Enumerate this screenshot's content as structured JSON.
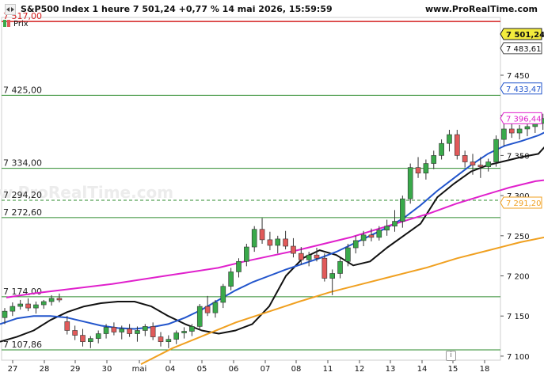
{
  "header": {
    "title": "S&P500 Index 1 heure 7 501,24 +0,77 % 14 mai 2026, 15:59:59",
    "website": "www.ProRealTime.com",
    "legend_label": "Prix"
  },
  "watermark": "www.ProRealTime.com",
  "info_button_glyph": "i",
  "chart_data": {
    "type": "candlestick",
    "instrument": "S&P500 Index",
    "timeframe": "1 heure",
    "last_price": "7 501,24",
    "change": "+0,77 %",
    "date": "14 mai 2026, 15:59:59",
    "x_tick_labels": [
      "27",
      "28",
      "29",
      "30",
      "mai",
      "04",
      "05",
      "06",
      "07",
      "08",
      "11",
      "12",
      "13",
      "14",
      "15",
      "18"
    ],
    "y_range": [
      7095,
      7522
    ],
    "y_ticks": [
      7100,
      7150,
      7200,
      7250,
      7300,
      7350,
      7400,
      7450
    ],
    "y_tick_labels": [
      "7 100",
      "7 150",
      "7 200",
      "7 250",
      "7 300",
      "7 350",
      "7 400",
      "7 450"
    ],
    "candles": [
      [
        7148,
        7160,
        7140,
        7156
      ],
      [
        7156,
        7167,
        7150,
        7162
      ],
      [
        7162,
        7170,
        7158,
        7165
      ],
      [
        7165,
        7172,
        7156,
        7160
      ],
      [
        7160,
        7168,
        7153,
        7164
      ],
      [
        7164,
        7170,
        7159,
        7168
      ],
      [
        7168,
        7176,
        7163,
        7172
      ],
      [
        7172,
        7178,
        7167,
        7170
      ],
      [
        7143,
        7150,
        7127,
        7132
      ],
      [
        7132,
        7138,
        7120,
        7126
      ],
      [
        7126,
        7134,
        7112,
        7118
      ],
      [
        7118,
        7125,
        7110,
        7122
      ],
      [
        7122,
        7132,
        7116,
        7128
      ],
      [
        7128,
        7140,
        7122,
        7136
      ],
      [
        7136,
        7142,
        7126,
        7130
      ],
      [
        7130,
        7138,
        7121,
        7134
      ],
      [
        7134,
        7140,
        7124,
        7128
      ],
      [
        7128,
        7137,
        7118,
        7132
      ],
      [
        7132,
        7140,
        7125,
        7137
      ],
      [
        7137,
        7142,
        7120,
        7124
      ],
      [
        7124,
        7130,
        7112,
        7118
      ],
      [
        7118,
        7126,
        7110,
        7121
      ],
      [
        7121,
        7132,
        7115,
        7129
      ],
      [
        7129,
        7136,
        7122,
        7131
      ],
      [
        7131,
        7140,
        7125,
        7137
      ],
      [
        7137,
        7165,
        7132,
        7162
      ],
      [
        7162,
        7175,
        7150,
        7154
      ],
      [
        7154,
        7170,
        7148,
        7167
      ],
      [
        7167,
        7190,
        7160,
        7187
      ],
      [
        7187,
        7210,
        7182,
        7205
      ],
      [
        7205,
        7222,
        7198,
        7218
      ],
      [
        7218,
        7240,
        7212,
        7236
      ],
      [
        7236,
        7262,
        7230,
        7258
      ],
      [
        7258,
        7272,
        7240,
        7245
      ],
      [
        7245,
        7255,
        7232,
        7238
      ],
      [
        7238,
        7250,
        7228,
        7246
      ],
      [
        7246,
        7256,
        7233,
        7237
      ],
      [
        7237,
        7247,
        7223,
        7228
      ],
      [
        7228,
        7236,
        7214,
        7220
      ],
      [
        7220,
        7230,
        7212,
        7226
      ],
      [
        7226,
        7235,
        7218,
        7222
      ],
      [
        7222,
        7228,
        7193,
        7197
      ],
      [
        7197,
        7208,
        7176,
        7203
      ],
      [
        7203,
        7222,
        7197,
        7218
      ],
      [
        7218,
        7240,
        7212,
        7235
      ],
      [
        7235,
        7250,
        7228,
        7244
      ],
      [
        7244,
        7256,
        7237,
        7251
      ],
      [
        7251,
        7259,
        7243,
        7248
      ],
      [
        7248,
        7262,
        7244,
        7257
      ],
      [
        7257,
        7270,
        7250,
        7262
      ],
      [
        7262,
        7282,
        7255,
        7268
      ],
      [
        7268,
        7300,
        7260,
        7296
      ],
      [
        7296,
        7340,
        7290,
        7335
      ],
      [
        7335,
        7348,
        7322,
        7328
      ],
      [
        7328,
        7345,
        7320,
        7340
      ],
      [
        7340,
        7356,
        7333,
        7350
      ],
      [
        7350,
        7370,
        7345,
        7365
      ],
      [
        7365,
        7382,
        7355,
        7376
      ],
      [
        7376,
        7382,
        7345,
        7350
      ],
      [
        7350,
        7356,
        7335,
        7342
      ],
      [
        7342,
        7352,
        7326,
        7338
      ],
      [
        7338,
        7348,
        7322,
        7336
      ],
      [
        7336,
        7346,
        7330,
        7342
      ],
      [
        7342,
        7375,
        7336,
        7370
      ],
      [
        7370,
        7390,
        7362,
        7383
      ],
      [
        7383,
        7392,
        7372,
        7378
      ],
      [
        7378,
        7388,
        7370,
        7383
      ],
      [
        7383,
        7392,
        7374,
        7386
      ],
      [
        7386,
        7396,
        7378,
        7390
      ],
      [
        7390,
        7402,
        7382,
        7396
      ],
      [
        7396,
        7412,
        7388,
        7406
      ],
      [
        7406,
        7420,
        7398,
        7414
      ],
      [
        7414,
        7425,
        7402,
        7421
      ],
      [
        7421,
        7432,
        7410,
        7427
      ],
      [
        7427,
        7433,
        7418,
        7424
      ],
      [
        7424,
        7430,
        7412,
        7420
      ],
      [
        7420,
        7427,
        7405,
        7410
      ],
      [
        7410,
        7416,
        7384,
        7387
      ],
      [
        7387,
        7395,
        7360,
        7366
      ],
      [
        7366,
        7374,
        7338,
        7344
      ],
      [
        7344,
        7355,
        7336,
        7348
      ],
      [
        7348,
        7380,
        7340,
        7376
      ],
      [
        7376,
        7386,
        7366,
        7380
      ],
      [
        7380,
        7394,
        7372,
        7389
      ],
      [
        7389,
        7402,
        7382,
        7397
      ],
      [
        7397,
        7412,
        7390,
        7405
      ],
      [
        7405,
        7422,
        7398,
        7415
      ],
      [
        7415,
        7438,
        7410,
        7433
      ],
      [
        7433,
        7446,
        7425,
        7441
      ],
      [
        7441,
        7445,
        7432,
        7436
      ],
      [
        7436,
        7452,
        7430,
        7446
      ],
      [
        7446,
        7460,
        7440,
        7455
      ],
      [
        7455,
        7478,
        7448,
        7472
      ],
      [
        7472,
        7488,
        7466,
        7483
      ],
      [
        7483,
        7502,
        7478,
        7497
      ],
      [
        7497,
        7517,
        7490,
        7512
      ],
      [
        7512,
        7516,
        7494,
        7500
      ],
      [
        7500,
        7506,
        7488,
        7496
      ],
      [
        7496,
        7506,
        7492,
        7502
      ],
      [
        7502,
        7506,
        7495,
        7501
      ]
    ],
    "moving_averages": [
      {
        "color": "#111111",
        "values": [
          7118,
          7124,
          7132,
          7145,
          7155,
          7162,
          7166,
          7168,
          7168,
          7162,
          7150,
          7140,
          7132,
          7128,
          7132,
          7140,
          7162,
          7200,
          7222,
          7232,
          7226,
          7213,
          7218,
          7235,
          7250,
          7265,
          7298,
          7315,
          7330,
          7338,
          7343,
          7348,
          7352,
          7375,
          7392,
          7404,
          7412,
          7420,
          7410,
          7380,
          7360,
          7365,
          7390,
          7420,
          7450,
          7475,
          7484
        ]
      },
      {
        "color": "#2255cc",
        "values": [
          7140,
          7147,
          7150,
          7150,
          7148,
          7143,
          7138,
          7135,
          7134,
          7136,
          7140,
          7148,
          7158,
          7170,
          7182,
          7192,
          7200,
          7208,
          7215,
          7222,
          7230,
          7240,
          7250,
          7260,
          7272,
          7288,
          7306,
          7322,
          7338,
          7352,
          7362,
          7368,
          7375,
          7385,
          7390,
          7392,
          7398,
          7405,
          7404,
          7400,
          7397,
          7396,
          7400,
          7408,
          7416,
          7425,
          7434
        ]
      },
      {
        "color": "#e020cc",
        "values": [
          7173,
          7178,
          7182,
          7186,
          7190,
          7195,
          7200,
          7205,
          7210,
          7218,
          7225,
          7232,
          7240,
          7248,
          7258,
          7268,
          7278,
          7290,
          7300,
          7310,
          7318,
          7322,
          7327,
          7338,
          7348,
          7360,
          7375,
          7385,
          7393,
          7397
        ]
      },
      {
        "color": "#f0a020",
        "values": [
          7090,
          7110,
          7126,
          7142,
          7155,
          7168,
          7180,
          7190,
          7200,
          7210,
          7222,
          7232,
          7242,
          7250,
          7258,
          7263,
          7268,
          7273,
          7280,
          7286,
          7292
        ]
      }
    ],
    "horizontal_lines": [
      {
        "value": 7517,
        "label": "7 517,00",
        "color": "#d42020",
        "style": "solid"
      },
      {
        "value": 7425,
        "label": "7 425,00",
        "color": "#2e8b2e",
        "style": "solid"
      },
      {
        "value": 7334,
        "label": "7 334,00",
        "color": "#2e8b2e",
        "style": "solid"
      },
      {
        "value": 7294.2,
        "label": "7 294,20",
        "color": "#2e8b2e",
        "style": "dashed"
      },
      {
        "value": 7272.6,
        "label": "7 272,60",
        "color": "#2e8b2e",
        "style": "solid"
      },
      {
        "value": 7174,
        "label": "7 174,00",
        "color": "#2e8b2e",
        "style": "solid"
      },
      {
        "value": 7107.86,
        "label": "7 107,86",
        "color": "#2e8b2e",
        "style": "solid"
      }
    ],
    "price_tags": [
      {
        "value": 7501.24,
        "label": "7 501,24",
        "bg": "#f3ec3d",
        "color": "#111111",
        "border": "#222222",
        "bold": true
      },
      {
        "value": 7483.61,
        "label": "7 483,61",
        "bg": "#ffffff",
        "color": "#111111",
        "border": "#444444",
        "bold": false
      },
      {
        "value": 7433.47,
        "label": "7 433,47",
        "bg": "#ffffff",
        "color": "#2255cc",
        "border": "#2255cc",
        "bold": false
      },
      {
        "value": 7396.44,
        "label": "7 396,44",
        "bg": "#ffffff",
        "color": "#e020cc",
        "border": "#e020cc",
        "bold": false
      },
      {
        "value": 7291.2,
        "label": "7 291,20",
        "bg": "#ffffff",
        "color": "#f0a020",
        "border": "#f0a020",
        "bold": false
      }
    ],
    "colors": {
      "up": "#39a94a",
      "down": "#e15a5a"
    }
  }
}
